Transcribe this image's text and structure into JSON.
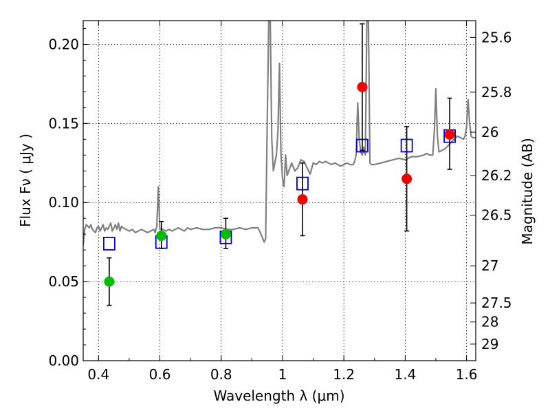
{
  "chart_data": {
    "type": "scatter",
    "xlabel": "Wavelength  λ (μm)",
    "ylabel": "Flux  Fν  ( μJy )",
    "ylabel_right": "Magnitude (AB)",
    "xlim": [
      0.35,
      1.63
    ],
    "ylim": [
      0.0,
      0.215
    ],
    "grid": true,
    "x_ticks": [
      0.4,
      0.6,
      0.8,
      1.0,
      1.2,
      1.4,
      1.6
    ],
    "x_tick_labels": [
      "0.4",
      "0.6",
      "0.8",
      "1",
      "1.2",
      "1.4",
      "1.6"
    ],
    "y_ticks": [
      0.0,
      0.05,
      0.1,
      0.15,
      0.2
    ],
    "y_tick_labels": [
      "0.00",
      "0.05",
      "0.10",
      "0.15",
      "0.20"
    ],
    "right_ticks": [
      {
        "flux": 0.2044,
        "label": "25.6"
      },
      {
        "flux": 0.1698,
        "label": "25.8"
      },
      {
        "flux": 0.1445,
        "label": "26"
      },
      {
        "flux": 0.117,
        "label": "26.2"
      },
      {
        "flux": 0.092,
        "label": "26.5"
      },
      {
        "flux": 0.06,
        "label": "27"
      },
      {
        "flux": 0.0365,
        "label": "27.5"
      },
      {
        "flux": 0.0245,
        "label": "28"
      },
      {
        "flux": 0.0105,
        "label": "29"
      }
    ],
    "colors": {
      "template": "#808080",
      "model": "#0000cc",
      "green": "#00bb00",
      "red": "#ee0000",
      "errorbar": "#000000"
    },
    "series": [
      {
        "kind": "line",
        "points": [
          [
            0.35,
            0.073
          ],
          [
            0.355,
            0.083
          ],
          [
            0.36,
            0.086
          ],
          [
            0.365,
            0.085
          ],
          [
            0.37,
            0.084
          ],
          [
            0.375,
            0.086
          ],
          [
            0.38,
            0.083
          ],
          [
            0.385,
            0.082
          ],
          [
            0.39,
            0.081
          ],
          [
            0.395,
            0.084
          ],
          [
            0.4,
            0.085
          ],
          [
            0.405,
            0.082
          ],
          [
            0.41,
            0.084
          ],
          [
            0.415,
            0.086
          ],
          [
            0.42,
            0.082
          ],
          [
            0.425,
            0.084
          ],
          [
            0.43,
            0.083
          ],
          [
            0.435,
            0.085
          ],
          [
            0.44,
            0.087
          ],
          [
            0.445,
            0.082
          ],
          [
            0.45,
            0.084
          ],
          [
            0.455,
            0.086
          ],
          [
            0.46,
            0.083
          ],
          [
            0.465,
            0.087
          ],
          [
            0.47,
            0.082
          ],
          [
            0.475,
            0.085
          ],
          [
            0.48,
            0.084
          ],
          [
            0.49,
            0.083
          ],
          [
            0.5,
            0.082
          ],
          [
            0.51,
            0.083
          ],
          [
            0.52,
            0.081
          ],
          [
            0.53,
            0.082
          ],
          [
            0.54,
            0.083
          ],
          [
            0.55,
            0.082
          ],
          [
            0.56,
            0.081
          ],
          [
            0.57,
            0.082
          ],
          [
            0.58,
            0.083
          ],
          [
            0.585,
            0.081
          ],
          [
            0.59,
            0.085
          ],
          [
            0.595,
            0.11
          ],
          [
            0.6,
            0.083
          ],
          [
            0.61,
            0.083
          ],
          [
            0.62,
            0.082
          ],
          [
            0.63,
            0.083
          ],
          [
            0.64,
            0.082
          ],
          [
            0.65,
            0.083
          ],
          [
            0.66,
            0.084
          ],
          [
            0.67,
            0.083
          ],
          [
            0.68,
            0.082
          ],
          [
            0.69,
            0.084
          ],
          [
            0.7,
            0.083
          ],
          [
            0.72,
            0.084
          ],
          [
            0.74,
            0.083
          ],
          [
            0.76,
            0.083
          ],
          [
            0.78,
            0.084
          ],
          [
            0.8,
            0.084
          ],
          [
            0.82,
            0.083
          ],
          [
            0.84,
            0.083
          ],
          [
            0.86,
            0.084
          ],
          [
            0.88,
            0.083
          ],
          [
            0.9,
            0.084
          ],
          [
            0.92,
            0.084
          ],
          [
            0.93,
            0.08
          ],
          [
            0.94,
            0.075
          ],
          [
            0.945,
            0.077
          ],
          [
            0.95,
            0.15
          ],
          [
            0.955,
            0.215
          ],
          [
            0.96,
            0.215
          ],
          [
            0.965,
            0.14
          ],
          [
            0.97,
            0.12
          ],
          [
            0.975,
            0.125
          ],
          [
            0.98,
            0.13
          ],
          [
            0.985,
            0.145
          ],
          [
            0.99,
            0.188
          ],
          [
            0.995,
            0.13
          ],
          [
            1.0,
            0.115
          ],
          [
            1.005,
            0.11
          ],
          [
            1.01,
            0.13
          ],
          [
            1.015,
            0.117
          ],
          [
            1.02,
            0.12
          ],
          [
            1.03,
            0.125
          ],
          [
            1.04,
            0.12
          ],
          [
            1.05,
            0.122
          ],
          [
            1.06,
            0.127
          ],
          [
            1.07,
            0.126
          ],
          [
            1.08,
            0.122
          ],
          [
            1.09,
            0.118
          ],
          [
            1.1,
            0.125
          ],
          [
            1.11,
            0.124
          ],
          [
            1.12,
            0.126
          ],
          [
            1.13,
            0.125
          ],
          [
            1.14,
            0.126
          ],
          [
            1.15,
            0.125
          ],
          [
            1.16,
            0.124
          ],
          [
            1.17,
            0.125
          ],
          [
            1.18,
            0.124
          ],
          [
            1.19,
            0.123
          ],
          [
            1.2,
            0.124
          ],
          [
            1.21,
            0.125
          ],
          [
            1.22,
            0.124
          ],
          [
            1.23,
            0.124
          ],
          [
            1.235,
            0.126
          ],
          [
            1.24,
            0.13
          ],
          [
            1.245,
            0.163
          ],
          [
            1.25,
            0.14
          ],
          [
            1.255,
            0.132
          ],
          [
            1.26,
            0.13
          ],
          [
            1.265,
            0.135
          ],
          [
            1.27,
            0.13
          ],
          [
            1.275,
            0.215
          ],
          [
            1.28,
            0.215
          ],
          [
            1.285,
            0.125
          ],
          [
            1.29,
            0.124
          ],
          [
            1.3,
            0.124
          ],
          [
            1.32,
            0.125
          ],
          [
            1.34,
            0.126
          ],
          [
            1.36,
            0.127
          ],
          [
            1.38,
            0.128
          ],
          [
            1.4,
            0.127
          ],
          [
            1.42,
            0.129
          ],
          [
            1.44,
            0.129
          ],
          [
            1.46,
            0.13
          ],
          [
            1.47,
            0.131
          ],
          [
            1.48,
            0.13
          ],
          [
            1.49,
            0.13
          ],
          [
            1.495,
            0.145
          ],
          [
            1.5,
            0.172
          ],
          [
            1.505,
            0.142
          ],
          [
            1.51,
            0.132
          ],
          [
            1.52,
            0.133
          ],
          [
            1.53,
            0.134
          ],
          [
            1.54,
            0.136
          ],
          [
            1.55,
            0.138
          ],
          [
            1.56,
            0.14
          ],
          [
            1.57,
            0.142
          ],
          [
            1.58,
            0.141
          ],
          [
            1.59,
            0.14
          ],
          [
            1.595,
            0.142
          ],
          [
            1.6,
            0.148
          ],
          [
            1.605,
            0.165
          ],
          [
            1.61,
            0.15
          ],
          [
            1.615,
            0.142
          ],
          [
            1.62,
            0.141
          ],
          [
            1.63,
            0.141
          ]
        ]
      },
      {
        "kind": "open-square",
        "points": [
          [
            0.435,
            0.074
          ],
          [
            0.605,
            0.075
          ],
          [
            0.815,
            0.078
          ],
          [
            1.065,
            0.112
          ],
          [
            1.26,
            0.136
          ],
          [
            1.405,
            0.136
          ],
          [
            1.545,
            0.142
          ]
        ]
      },
      {
        "kind": "filled-circle-green",
        "points": [
          [
            0.435,
            0.05,
            0.035,
            0.065
          ],
          [
            0.605,
            0.079,
            0.071,
            0.088
          ],
          [
            0.815,
            0.08,
            0.071,
            0.09
          ]
        ]
      },
      {
        "kind": "filled-circle-red",
        "points": [
          [
            1.065,
            0.102,
            0.079,
            0.125
          ],
          [
            1.26,
            0.173,
            0.133,
            0.213
          ],
          [
            1.405,
            0.115,
            0.082,
            0.148
          ],
          [
            1.545,
            0.143,
            0.121,
            0.166
          ]
        ]
      }
    ]
  }
}
